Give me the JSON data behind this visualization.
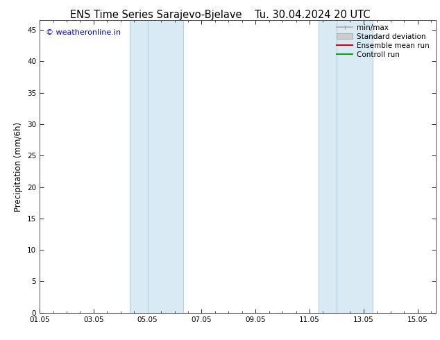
{
  "title": "ENS Time Series Sarajevo-Bjelave    Tu. 30.04.2024 20 UTC",
  "ylabel": "Precipitation (mm/6h)",
  "watermark": "© weatheronline.in",
  "watermark_color": "#0000bb",
  "xlim_start": 0.0,
  "xlim_end": 14.67,
  "ylim_min": 0,
  "ylim_max": 46.5,
  "yticks": [
    0,
    5,
    10,
    15,
    20,
    25,
    30,
    35,
    40,
    45
  ],
  "xtick_positions": [
    0,
    2,
    4,
    6,
    8,
    10,
    12,
    14
  ],
  "xtick_labels": [
    "01.05",
    "03.05",
    "05.05",
    "07.05",
    "09.05",
    "11.05",
    "13.05",
    "15.05"
  ],
  "shaded_bands": [
    {
      "x_start": 3.33,
      "x_end": 4.0,
      "edge_x": 3.67
    },
    {
      "x_start": 4.0,
      "x_end": 5.33,
      "edge_x": 4.0
    }
  ],
  "shaded_bands2": [
    {
      "x_start": 10.33,
      "x_end": 11.0,
      "edge_x": 10.67
    },
    {
      "x_start": 11.0,
      "x_end": 12.33,
      "edge_x": 11.0
    }
  ],
  "band_color": "#daeaf5",
  "band_edge_color": "#b0cfe0",
  "background_color": "#ffffff",
  "legend_entries": [
    {
      "label": "min/max",
      "color": "#aaaaaa",
      "lw": 1.2,
      "type": "line_with_endpoints"
    },
    {
      "label": "Standard deviation",
      "color": "#cccccc",
      "lw": 7,
      "type": "thick_line"
    },
    {
      "label": "Ensemble mean run",
      "color": "#dd0000",
      "lw": 1.5,
      "type": "line"
    },
    {
      "label": "Controll run",
      "color": "#00aa00",
      "lw": 1.5,
      "type": "line"
    }
  ],
  "title_fontsize": 10.5,
  "tick_fontsize": 7.5,
  "ylabel_fontsize": 8.5,
  "watermark_fontsize": 8,
  "legend_fontsize": 7.5
}
